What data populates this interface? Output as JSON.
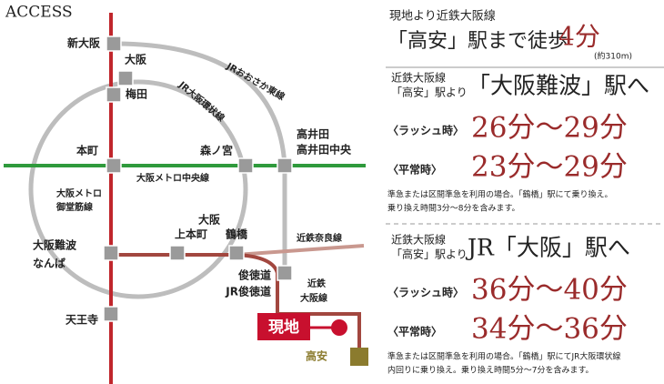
{
  "map": {
    "title": "ACCESS",
    "stations": [
      "新大阪",
      "大阪",
      "梅田",
      "本町",
      "森ノ宮",
      "高井田",
      "高井田中央",
      "大阪",
      "上本町",
      "鶴橋",
      "大阪難波",
      "なんば",
      "俊徳道",
      "JR俊徳道",
      "天王寺",
      "高安"
    ],
    "lines": [
      "JRおおさか東線",
      "JR大阪環状線",
      "大阪メトロ中央線",
      "大阪メトロ",
      "御堂筋線",
      "近鉄奈良線",
      "近鉄",
      "大阪線"
    ],
    "site": "現地"
  },
  "info": {
    "walk": {
      "line1": "現地より近鉄大阪線",
      "line2": "「高安」駅まで徒歩",
      "minutes": "4分",
      "distance": "(約310m)"
    },
    "routes": [
      {
        "from": [
          "近鉄大阪線",
          "「高安」駅より"
        ],
        "to": "「大阪難波」駅へ",
        "rows": [
          {
            "label": "〈ラッシュ時〉",
            "time": "26分〜29分"
          },
          {
            "label": "〈平常時〉",
            "time": "23分〜29分"
          }
        ],
        "note": [
          "準急または区間準急を利用の場合。「鶴橋」駅にて乗り換え。",
          "乗り換え時間3分〜8分を含みます。"
        ]
      },
      {
        "from": [
          "近鉄大阪線",
          "「高安」駅より"
        ],
        "to": "JR「大阪」駅へ",
        "rows": [
          {
            "label": "〈ラッシュ時〉",
            "time": "36分〜40分"
          },
          {
            "label": "〈平常時〉",
            "time": "34分〜36分"
          }
        ],
        "note": [
          "準急または区間準急を利用の場合。「鶴橋」駅にてJR大阪環状線",
          "内回りに乗り換え。乗り換え時間5分〜7分を含みます。"
        ]
      }
    ]
  }
}
